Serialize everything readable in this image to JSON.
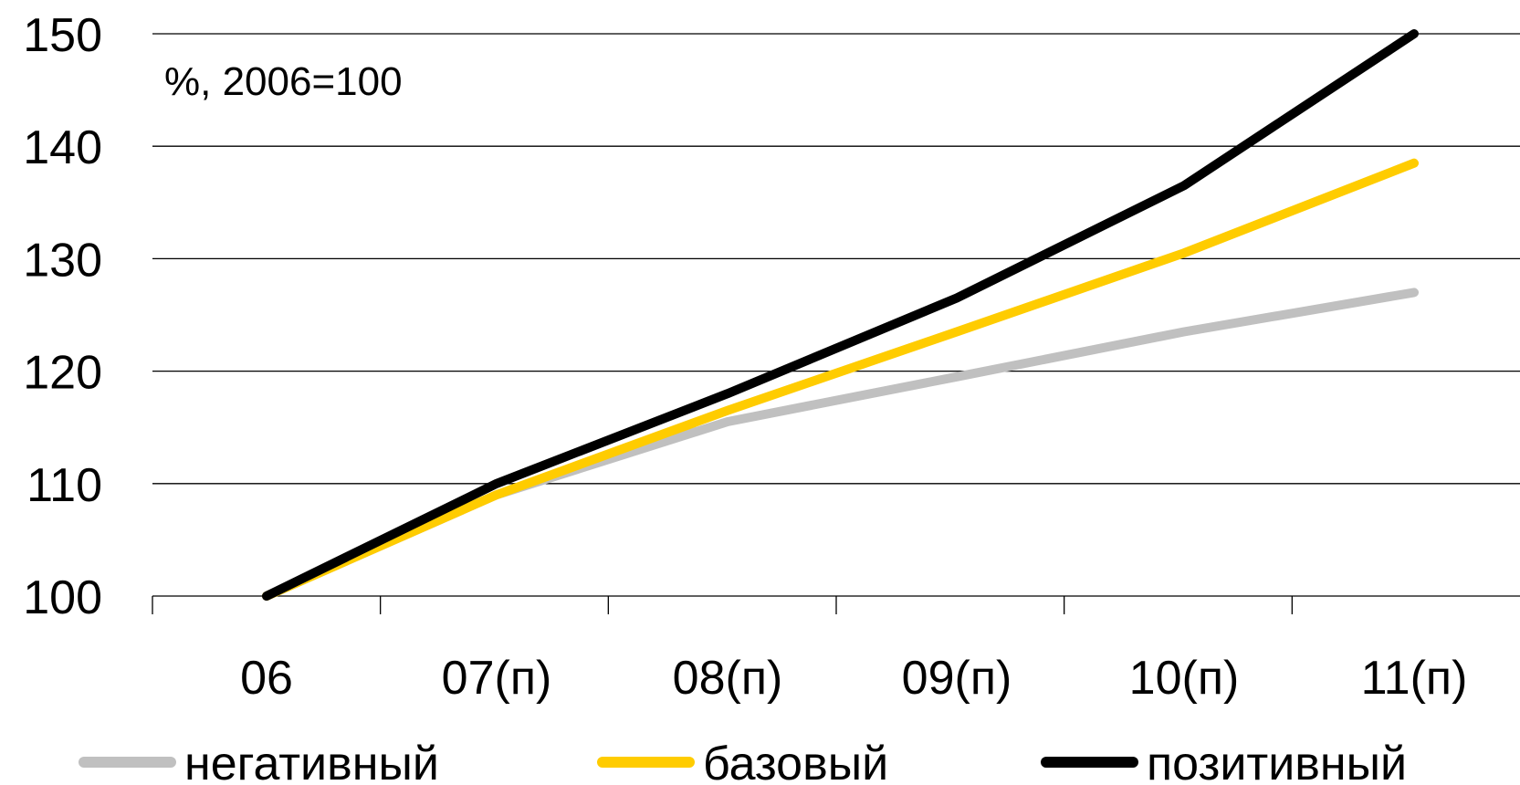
{
  "chart_data": {
    "type": "line",
    "annotation": "%, 2006=100",
    "categories": [
      "06",
      "07(п)",
      "08(п)",
      "09(п)",
      "10(п)",
      "11(п)"
    ],
    "ylim": [
      100,
      150
    ],
    "yticks": [
      "100",
      "110",
      "120",
      "130",
      "140",
      "150"
    ],
    "grid": true,
    "legend_position": "bottom",
    "series": [
      {
        "name": "негативный",
        "color": "#c0c0c0",
        "values": [
          100,
          109,
          115.5,
          119.5,
          123.5,
          127
        ]
      },
      {
        "name": "базовый",
        "color": "#ffcc00",
        "values": [
          100,
          109,
          116.5,
          123.5,
          130.5,
          138.5
        ]
      },
      {
        "name": "позитивный",
        "color": "#000000",
        "values": [
          100,
          110,
          118,
          126.5,
          136.5,
          150
        ]
      }
    ]
  }
}
